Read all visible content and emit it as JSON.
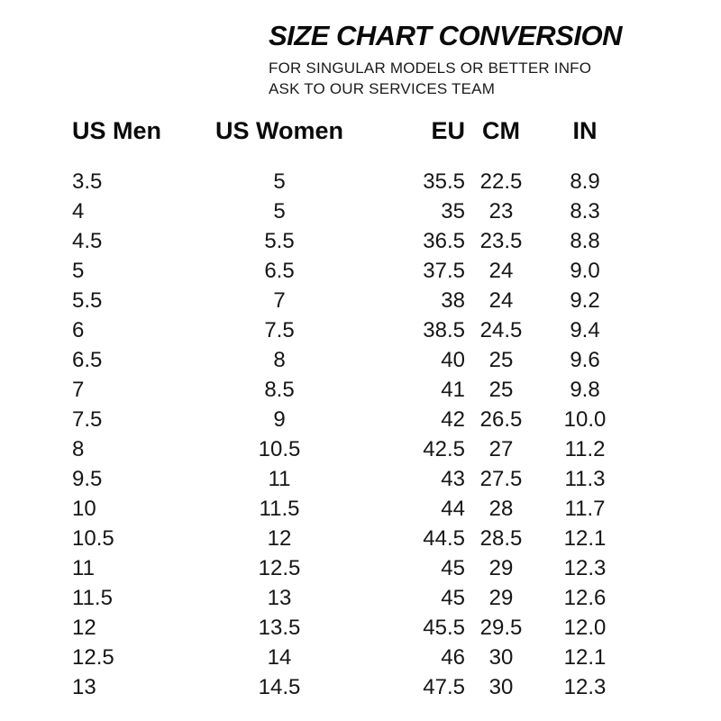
{
  "header": {
    "title": "SIZE CHART CONVERSION",
    "subtitle_line1": "FOR SINGULAR MODELS OR BETTER INFO",
    "subtitle_line2": "ASK TO OUR SERVICES TEAM"
  },
  "table": {
    "columns": [
      "US Men",
      "US Women",
      "EU",
      "CM",
      "IN"
    ],
    "rows": [
      [
        "3.5",
        "5",
        "35.5",
        "22.5",
        "8.9"
      ],
      [
        "4",
        "5",
        "35",
        "23",
        "8.3"
      ],
      [
        "4.5",
        "5.5",
        "36.5",
        "23.5",
        "8.8"
      ],
      [
        "5",
        "6.5",
        "37.5",
        "24",
        "9.0"
      ],
      [
        "5.5",
        "7",
        "38",
        "24",
        "9.2"
      ],
      [
        "6",
        "7.5",
        "38.5",
        "24.5",
        "9.4"
      ],
      [
        "6.5",
        "8",
        "40",
        "25",
        "9.6"
      ],
      [
        "7",
        "8.5",
        "41",
        "25",
        "9.8"
      ],
      [
        "7.5",
        "9",
        "42",
        "26.5",
        "10.0"
      ],
      [
        "8",
        "10.5",
        "42.5",
        "27",
        "11.2"
      ],
      [
        "9.5",
        "11",
        "43",
        "27.5",
        "11.3"
      ],
      [
        "10",
        "11.5",
        "44",
        "28",
        "11.7"
      ],
      [
        "10.5",
        "12",
        "44.5",
        "28.5",
        "12.1"
      ],
      [
        "11",
        "12.5",
        "45",
        "29",
        "12.3"
      ],
      [
        "11.5",
        "13",
        "45",
        "29",
        "12.6"
      ],
      [
        "12",
        "13.5",
        "45.5",
        "29.5",
        "12.0"
      ],
      [
        "12.5",
        "14",
        "46",
        "30",
        "12.1"
      ],
      [
        "13",
        "14.5",
        "47.5",
        "30",
        "12.3"
      ]
    ]
  },
  "colors": {
    "background": "#ffffff",
    "text": "#111111"
  }
}
